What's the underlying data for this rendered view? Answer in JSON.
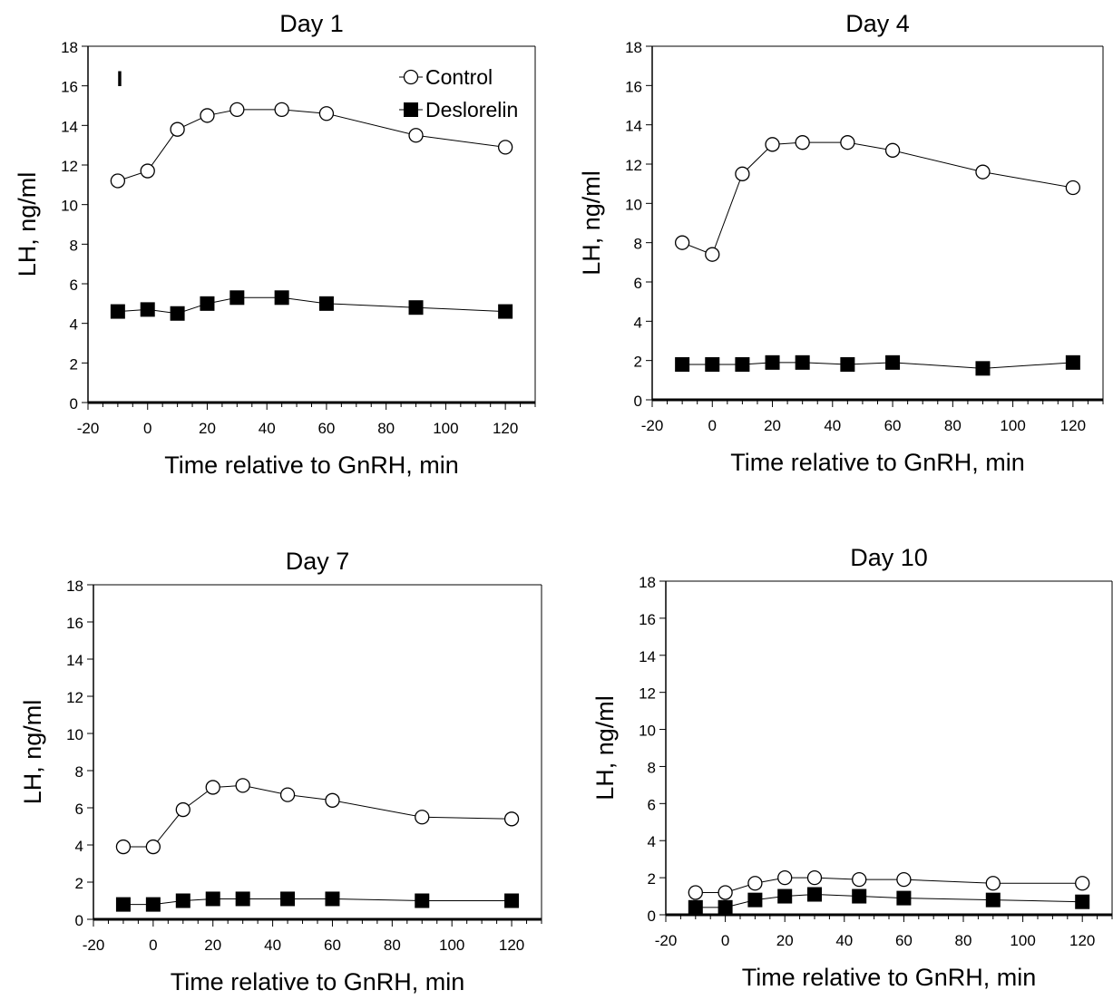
{
  "chart_data": [
    {
      "type": "line",
      "title": "Day 1",
      "xlabel": "Time relative to GnRH, min",
      "ylabel": "LH, ng/ml",
      "xlim": [
        -20,
        130
      ],
      "ylim": [
        0,
        18
      ],
      "xticks": [
        -20,
        0,
        20,
        40,
        60,
        80,
        100,
        120
      ],
      "yticks": [
        0,
        2,
        4,
        6,
        8,
        10,
        12,
        14,
        16,
        18
      ],
      "x": [
        -10,
        0,
        10,
        20,
        30,
        45,
        60,
        90,
        120
      ],
      "series": [
        {
          "name": "Control",
          "marker": "open-circle",
          "values": [
            11.2,
            11.7,
            13.8,
            14.5,
            14.8,
            14.8,
            14.6,
            13.5,
            12.9
          ]
        },
        {
          "name": "Deslorelin",
          "marker": "filled-square",
          "values": [
            4.6,
            4.7,
            4.5,
            5.0,
            5.3,
            5.3,
            5.0,
            4.8,
            4.6
          ]
        }
      ],
      "legend": {
        "position": "top-right",
        "entries": [
          "Control",
          "Deslorelin"
        ]
      },
      "annotation": "I"
    },
    {
      "type": "line",
      "title": "Day 4",
      "xlabel": "Time relative to GnRH, min",
      "ylabel": "LH, ng/ml",
      "xlim": [
        -20,
        130
      ],
      "ylim": [
        0,
        18
      ],
      "xticks": [
        -20,
        0,
        20,
        40,
        60,
        80,
        100,
        120
      ],
      "yticks": [
        0,
        2,
        4,
        6,
        8,
        10,
        12,
        14,
        16,
        18
      ],
      "x": [
        -10,
        0,
        10,
        20,
        30,
        45,
        60,
        90,
        120
      ],
      "series": [
        {
          "marker": "open-circle",
          "values": [
            8.0,
            7.4,
            11.5,
            13.0,
            13.1,
            13.1,
            12.7,
            11.6,
            10.8
          ]
        },
        {
          "marker": "filled-square",
          "values": [
            1.8,
            1.8,
            1.8,
            1.9,
            1.9,
            1.8,
            1.9,
            1.6,
            1.9
          ]
        }
      ]
    },
    {
      "type": "line",
      "title": "Day 7",
      "xlabel": "Time relative to GnRH, min",
      "ylabel": "LH, ng/ml",
      "xlim": [
        -20,
        130
      ],
      "ylim": [
        0,
        18
      ],
      "xticks": [
        -20,
        0,
        20,
        40,
        60,
        80,
        100,
        120
      ],
      "yticks": [
        0,
        2,
        4,
        6,
        8,
        10,
        12,
        14,
        16,
        18
      ],
      "x": [
        -10,
        0,
        10,
        20,
        30,
        45,
        60,
        90,
        120
      ],
      "series": [
        {
          "marker": "open-circle",
          "values": [
            3.9,
            3.9,
            5.9,
            7.1,
            7.2,
            6.7,
            6.4,
            5.5,
            5.4
          ]
        },
        {
          "marker": "filled-square",
          "values": [
            0.8,
            0.8,
            1.0,
            1.1,
            1.1,
            1.1,
            1.1,
            1.0,
            1.0
          ]
        }
      ]
    },
    {
      "type": "line",
      "title": "Day 10",
      "xlabel": "Time relative to GnRH, min",
      "ylabel": "LH, ng/ml",
      "xlim": [
        -20,
        130
      ],
      "ylim": [
        0,
        18
      ],
      "xticks": [
        -20,
        0,
        20,
        40,
        60,
        80,
        100,
        120
      ],
      "yticks": [
        0,
        2,
        4,
        6,
        8,
        10,
        12,
        14,
        16,
        18
      ],
      "x": [
        -10,
        0,
        10,
        20,
        30,
        45,
        60,
        90,
        120
      ],
      "series": [
        {
          "marker": "open-circle",
          "values": [
            1.2,
            1.2,
            1.7,
            2.0,
            2.0,
            1.9,
            1.9,
            1.7,
            1.7
          ]
        },
        {
          "marker": "filled-square",
          "values": [
            0.4,
            0.4,
            0.8,
            1.0,
            1.1,
            1.0,
            0.9,
            0.8,
            0.7
          ]
        }
      ]
    }
  ]
}
